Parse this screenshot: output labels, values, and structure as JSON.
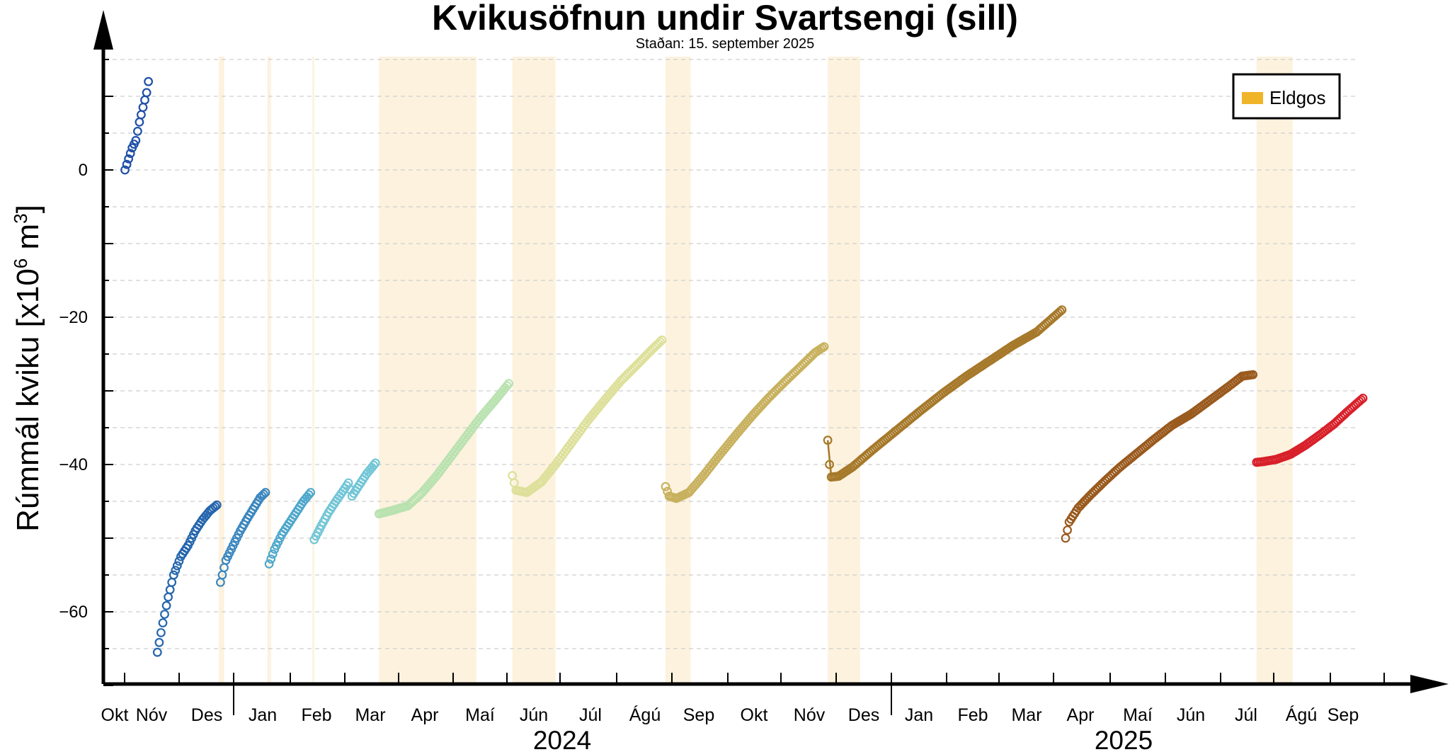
{
  "chart_data": {
    "type": "scatter",
    "title": "Kvikusöfnun undir Svartsengi (sill)",
    "subtitle": "Staðan: 15. september 2025",
    "ylabel_main": "Rúmmál kviku [x10",
    "ylabel_exp": "6",
    "ylabel_mid": " m",
    "ylabel_exp2": "3",
    "ylabel_end": "]",
    "y_ticks": [
      0,
      -20,
      -40,
      -60
    ],
    "y_tick_labels": [
      "0",
      "−20",
      "−40",
      "−60"
    ],
    "ylim": [
      -70,
      15
    ],
    "month_labels": [
      "Okt",
      "Nóv",
      "Des",
      "Jan",
      "Feb",
      "Mar",
      "Apr",
      "Maí",
      "Jún",
      "Júl",
      "Ágú",
      "Sep",
      "Okt",
      "Nóv",
      "Des",
      "Jan",
      "Feb",
      "Mar",
      "Apr",
      "Maí",
      "Jún",
      "Júl",
      "Ágú",
      "Sep"
    ],
    "year_labels": [
      "2024",
      "2025"
    ],
    "legend": {
      "label": "Eldgos",
      "color": "#f0b429",
      "placement": "top-right"
    },
    "eruptions": [
      {
        "start": "2023-12-18",
        "end": "2023-12-21"
      },
      {
        "start": "2024-01-14",
        "end": "2024-01-16"
      },
      {
        "start": "2024-02-08",
        "end": "2024-02-09"
      },
      {
        "start": "2024-03-16",
        "end": "2024-05-09"
      },
      {
        "start": "2024-05-29",
        "end": "2024-06-22"
      },
      {
        "start": "2024-08-22",
        "end": "2024-09-05"
      },
      {
        "start": "2024-11-20",
        "end": "2024-12-08"
      },
      {
        "start": "2025-07-16",
        "end": "2025-08-05"
      }
    ],
    "series": [
      {
        "color": "#1f4fa8",
        "connected": false,
        "points": [
          [
            "2023-10-27",
            0
          ],
          [
            "2023-10-29",
            1.5
          ],
          [
            "2023-10-31",
            3.0
          ],
          [
            "2023-11-02",
            4.0
          ],
          [
            "2023-11-04",
            6.5
          ],
          [
            "2023-11-06",
            8.5
          ],
          [
            "2023-11-08",
            10.5
          ],
          [
            "2023-11-09",
            12
          ]
        ]
      },
      {
        "color": "#2566ad",
        "connected": false,
        "points": [
          [
            "2023-11-14",
            -65.5
          ],
          [
            "2023-11-17",
            -61.5
          ],
          [
            "2023-11-20",
            -58
          ],
          [
            "2023-11-23",
            -55
          ],
          [
            "2023-11-27",
            -52.5
          ],
          [
            "2023-12-01",
            -51
          ],
          [
            "2023-12-05",
            -49
          ],
          [
            "2023-12-09",
            -47.5
          ],
          [
            "2023-12-13",
            -46.3
          ],
          [
            "2023-12-17",
            -45.5
          ]
        ]
      },
      {
        "color": "#3b87bf",
        "connected": false,
        "points": [
          [
            "2023-12-19",
            -56
          ],
          [
            "2023-12-22",
            -53
          ],
          [
            "2023-12-26",
            -51
          ],
          [
            "2023-12-30",
            -49
          ],
          [
            "2024-01-03",
            -47.3
          ],
          [
            "2024-01-07",
            -45.7
          ],
          [
            "2024-01-10",
            -44.5
          ],
          [
            "2024-01-13",
            -43.8
          ]
        ]
      },
      {
        "color": "#4fa8cc",
        "connected": false,
        "points": [
          [
            "2024-01-15",
            -53.5
          ],
          [
            "2024-01-18",
            -51.5
          ],
          [
            "2024-01-22",
            -49.5
          ],
          [
            "2024-01-26",
            -48
          ],
          [
            "2024-01-30",
            -46.5
          ],
          [
            "2024-02-03",
            -45
          ],
          [
            "2024-02-07",
            -43.8
          ]
        ]
      },
      {
        "color": "#72c6d6",
        "connected": false,
        "points": [
          [
            "2024-02-09",
            -50.2
          ],
          [
            "2024-02-13",
            -48.3
          ],
          [
            "2024-02-17",
            -46.5
          ],
          [
            "2024-02-21",
            -45
          ],
          [
            "2024-02-25",
            -43.6
          ],
          [
            "2024-02-28",
            -42.5
          ],
          [
            "2024-03-01",
            -44.3
          ],
          [
            "2024-03-05",
            -42.8
          ],
          [
            "2024-03-09",
            -41.3
          ],
          [
            "2024-03-14",
            -39.8
          ]
        ]
      },
      {
        "color": "#b9e2b0",
        "connected": false,
        "points": [
          [
            "2024-03-16",
            -46.7
          ],
          [
            "2024-03-24",
            -46.2
          ],
          [
            "2024-04-01",
            -45.6
          ],
          [
            "2024-04-09",
            -43.8
          ],
          [
            "2024-04-17",
            -41.5
          ],
          [
            "2024-04-25",
            -38.9
          ],
          [
            "2024-05-03",
            -36.3
          ],
          [
            "2024-05-11",
            -33.7
          ],
          [
            "2024-05-19",
            -31.4
          ],
          [
            "2024-05-27",
            -29
          ]
        ]
      },
      {
        "color": "#dde09a",
        "connected": false,
        "points": [
          [
            "2024-05-29",
            -41.5
          ],
          [
            "2024-05-31",
            -43.5
          ],
          [
            "2024-06-06",
            -43.8
          ],
          [
            "2024-06-14",
            -42.4
          ],
          [
            "2024-06-22",
            -40
          ],
          [
            "2024-07-01",
            -37
          ],
          [
            "2024-07-10",
            -34
          ],
          [
            "2024-07-19",
            -31.3
          ],
          [
            "2024-07-28",
            -28.7
          ],
          [
            "2024-08-06",
            -26.5
          ],
          [
            "2024-08-14",
            -24.5
          ],
          [
            "2024-08-20",
            -23.1
          ]
        ]
      },
      {
        "color": "#c8b15e",
        "connected": false,
        "points": [
          [
            "2024-08-22",
            -43
          ],
          [
            "2024-08-24",
            -44.3
          ],
          [
            "2024-08-28",
            -44.6
          ],
          [
            "2024-09-04",
            -43.8
          ],
          [
            "2024-09-12",
            -41.5
          ],
          [
            "2024-09-21",
            -38.7
          ],
          [
            "2024-09-30",
            -36
          ],
          [
            "2024-10-09",
            -33.4
          ],
          [
            "2024-10-18",
            -31
          ],
          [
            "2024-10-27",
            -28.8
          ],
          [
            "2024-11-05",
            -26.7
          ],
          [
            "2024-11-13",
            -24.8
          ],
          [
            "2024-11-18",
            -24
          ]
        ]
      },
      {
        "color": "#a6792a",
        "connected": false,
        "points": [
          [
            "2024-11-20",
            -36.7
          ],
          [
            "2024-11-21",
            -40
          ],
          [
            "2024-11-22",
            -41.7
          ],
          [
            "2024-11-26",
            -41.6
          ],
          [
            "2024-12-04",
            -40.3
          ],
          [
            "2024-12-15",
            -38
          ],
          [
            "2024-12-28",
            -35.4
          ],
          [
            "2025-01-10",
            -32.8
          ],
          [
            "2025-01-23",
            -30.3
          ],
          [
            "2025-02-05",
            -28
          ],
          [
            "2025-02-18",
            -25.9
          ],
          [
            "2025-03-03",
            -23.8
          ],
          [
            "2025-03-16",
            -22
          ],
          [
            "2025-03-30",
            -19
          ]
        ]
      },
      {
        "color": "#9a5a1e",
        "connected": false,
        "points": [
          [
            "2025-04-01",
            -50
          ],
          [
            "2025-04-03",
            -47.8
          ],
          [
            "2025-04-08",
            -45.9
          ],
          [
            "2025-04-15",
            -44.1
          ],
          [
            "2025-04-23",
            -42.2
          ],
          [
            "2025-05-01",
            -40.4
          ],
          [
            "2025-05-10",
            -38.6
          ],
          [
            "2025-05-20",
            -36.6
          ],
          [
            "2025-05-30",
            -34.7
          ],
          [
            "2025-06-10",
            -33.1
          ],
          [
            "2025-06-20",
            -31.3
          ],
          [
            "2025-06-30",
            -29.5
          ],
          [
            "2025-07-08",
            -28
          ],
          [
            "2025-07-14",
            -27.8
          ]
        ]
      },
      {
        "color": "#d8202a",
        "connected": false,
        "points": [
          [
            "2025-07-16",
            -39.7
          ],
          [
            "2025-07-20",
            -39.6
          ],
          [
            "2025-07-27",
            -39.3
          ],
          [
            "2025-08-04",
            -38.6
          ],
          [
            "2025-08-12",
            -37.4
          ],
          [
            "2025-08-20",
            -36
          ],
          [
            "2025-08-28",
            -34.5
          ],
          [
            "2025-09-05",
            -32.7
          ],
          [
            "2025-09-13",
            -31
          ]
        ]
      }
    ]
  }
}
